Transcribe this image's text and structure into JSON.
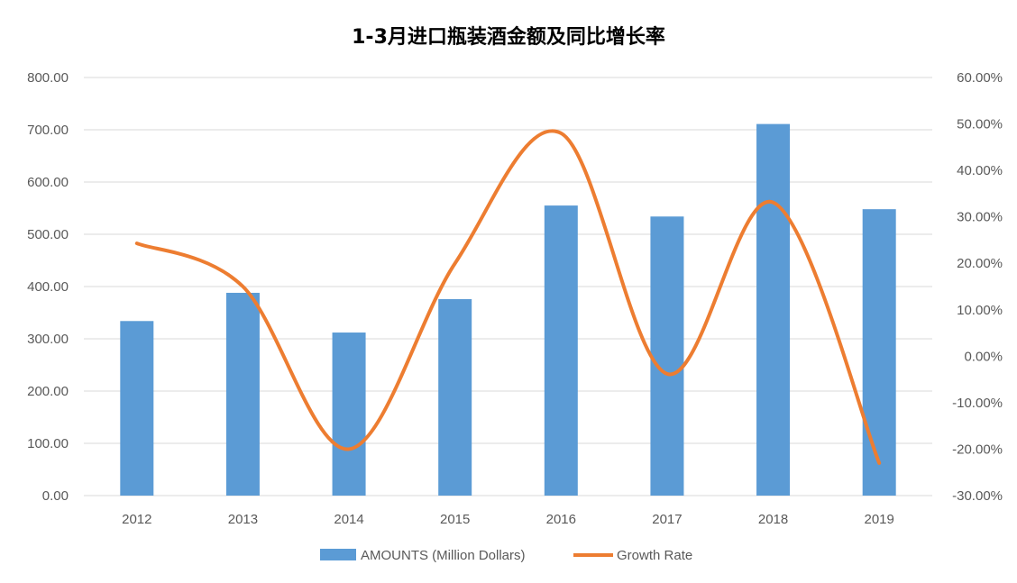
{
  "chart_data": {
    "type": "bar+line",
    "title": "1-3月进口瓶装酒金额及同比增长率",
    "categories": [
      "2012",
      "2013",
      "2014",
      "2015",
      "2016",
      "2017",
      "2018",
      "2019"
    ],
    "series": [
      {
        "name": "AMOUNTS (Million Dollars)",
        "kind": "bar",
        "axis": "left",
        "color": "#5b9bd5",
        "values": [
          334,
          388,
          312,
          376,
          555,
          534,
          711,
          548
        ]
      },
      {
        "name": "Growth Rate",
        "kind": "line",
        "smooth": true,
        "axis": "right",
        "color": "#ed7d31",
        "values": [
          24.3,
          15.0,
          -20.0,
          20.0,
          48.0,
          -3.8,
          33.1,
          -23.0
        ]
      }
    ],
    "y_left": {
      "min": 0,
      "max": 800,
      "step": 100,
      "tick_labels": [
        "0.00",
        "100.00",
        "200.00",
        "300.00",
        "400.00",
        "500.00",
        "600.00",
        "700.00",
        "800.00"
      ]
    },
    "y_right": {
      "min": -30,
      "max": 60,
      "step": 10,
      "tick_labels": [
        "-30.00%",
        "-20.00%",
        "-10.00%",
        "0.00%",
        "10.00%",
        "20.00%",
        "30.00%",
        "40.00%",
        "50.00%",
        "60.00%"
      ]
    },
    "grid": true,
    "legend": {
      "position": "bottom",
      "items": [
        "AMOUNTS (Million Dollars)",
        "Growth Rate"
      ]
    }
  }
}
